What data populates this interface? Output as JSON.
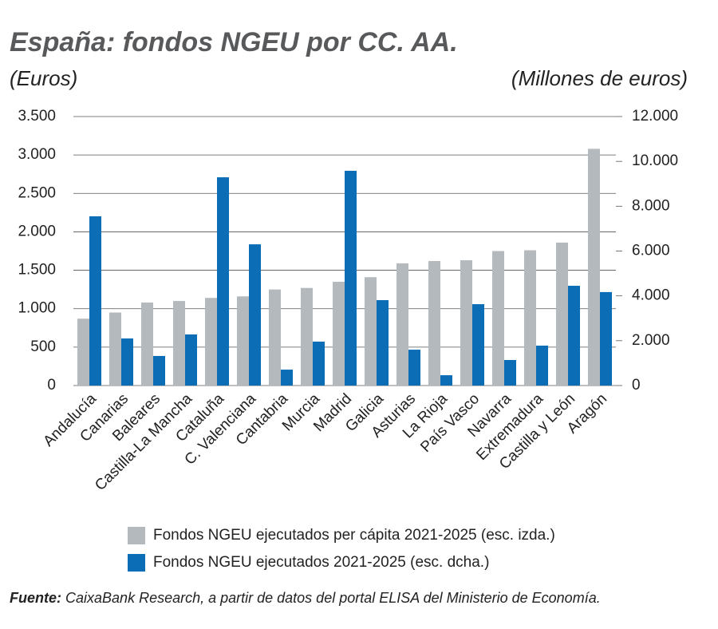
{
  "chart_data": {
    "type": "bar",
    "title": "España: fondos NGEU por CC. AA.",
    "y_label": "(Euros)",
    "y2_label": "(Millones de euros)",
    "categories": [
      "Andalucía",
      "Canarias",
      "Baleares",
      "Castilla-La Mancha",
      "Cataluña",
      "C. Valenciana",
      "Cantabria",
      "Murcia",
      "Madrid",
      "Galicia",
      "Asturias",
      "La Rioja",
      "País Vasco",
      "Navarra",
      "Extremadura",
      "Castilla y León",
      "Aragón"
    ],
    "series": [
      {
        "name": "Fondos NGEU ejecutados per cápita 2021-2025 (esc. izda.)",
        "color": "#b3b9bd",
        "axis": "y",
        "values": [
          870,
          950,
          1080,
          1100,
          1140,
          1160,
          1250,
          1270,
          1350,
          1410,
          1590,
          1620,
          1630,
          1750,
          1760,
          1860,
          3080
        ]
      },
      {
        "name": "Fondos NGEU ejecutados 2021-2025 (esc. dcha.)",
        "color": "#0a6db5",
        "axis": "y2",
        "values": [
          7550,
          2100,
          1320,
          2280,
          9290,
          6300,
          710,
          1960,
          9580,
          3810,
          1600,
          460,
          3630,
          1140,
          1780,
          4450,
          4170
        ]
      }
    ],
    "ylim": [
      0,
      3500
    ],
    "yticks": [
      0,
      {
        "value": 500,
        "label": "500"
      },
      {
        "value": 1000,
        "label": "1.000"
      },
      {
        "value": 1500,
        "label": "1.500"
      },
      {
        "value": 2000,
        "label": "2.000"
      },
      {
        "value": 2500,
        "label": "2.500"
      },
      {
        "value": 3000,
        "label": "3.000"
      },
      {
        "value": 3500,
        "label": "3.500"
      }
    ],
    "y2lim": [
      0,
      12000
    ],
    "y2ticks": [
      0,
      {
        "value": 2000,
        "label": "2.000"
      },
      {
        "value": 4000,
        "label": "4.000"
      },
      {
        "value": 6000,
        "label": "6.000"
      },
      {
        "value": 8000,
        "label": "8.000"
      },
      {
        "value": 10000,
        "label": "10.000"
      },
      {
        "value": 12000,
        "label": "12.000"
      }
    ],
    "grid": true,
    "source_label": "Fuente:",
    "source": "CaixaBank Research, a partir de datos del portal ELISA del Ministerio de Economía."
  }
}
